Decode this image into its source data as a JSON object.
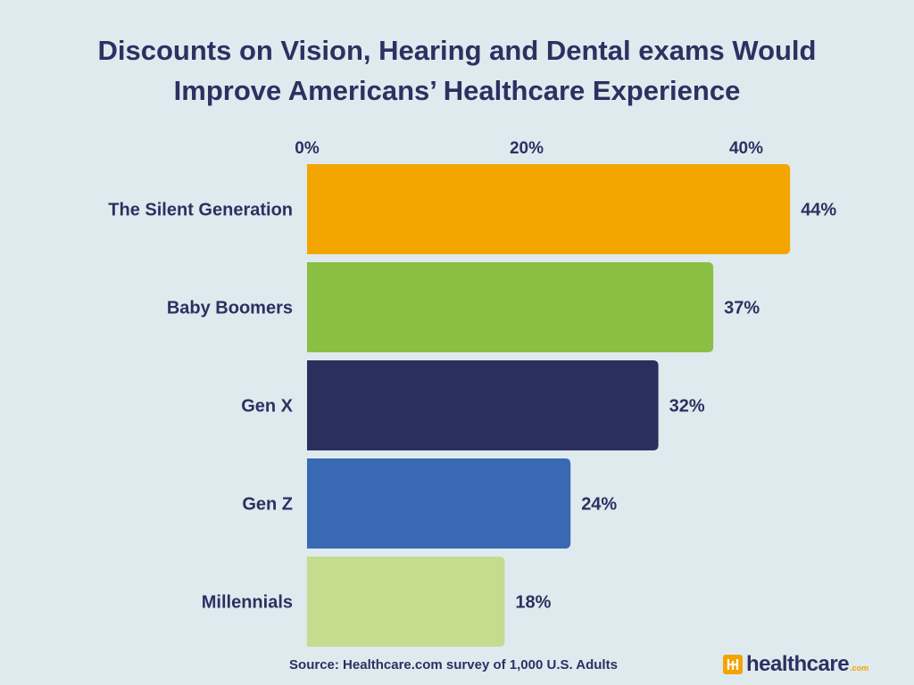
{
  "title_lines": [
    "Discounts on Vision, Hearing and Dental exams Would",
    "Improve Americans’  Healthcare Experience"
  ],
  "source": "Source: Healthcare.com survey of 1,000 U.S. Adults",
  "logo": {
    "text": "healthcare",
    "suffix": ".com",
    "brand_color": "#f4a300"
  },
  "chart_data": {
    "type": "bar",
    "orientation": "horizontal",
    "categories": [
      "The Silent Generation",
      "Baby Boomers",
      "Gen X",
      "Gen Z",
      "Millennials"
    ],
    "values": [
      44,
      37,
      32,
      24,
      18
    ],
    "value_labels": [
      "44%",
      "37%",
      "32%",
      "24%",
      "18%"
    ],
    "colors": [
      "#f4a600",
      "#8abf44",
      "#2b2f5e",
      "#3a69b3",
      "#c5db8e"
    ],
    "x_ticks": [
      0,
      20,
      40
    ],
    "x_tick_labels": [
      "0%",
      "20%",
      "40%"
    ],
    "x_axis_position": "top",
    "grid": false,
    "legend": "none"
  }
}
